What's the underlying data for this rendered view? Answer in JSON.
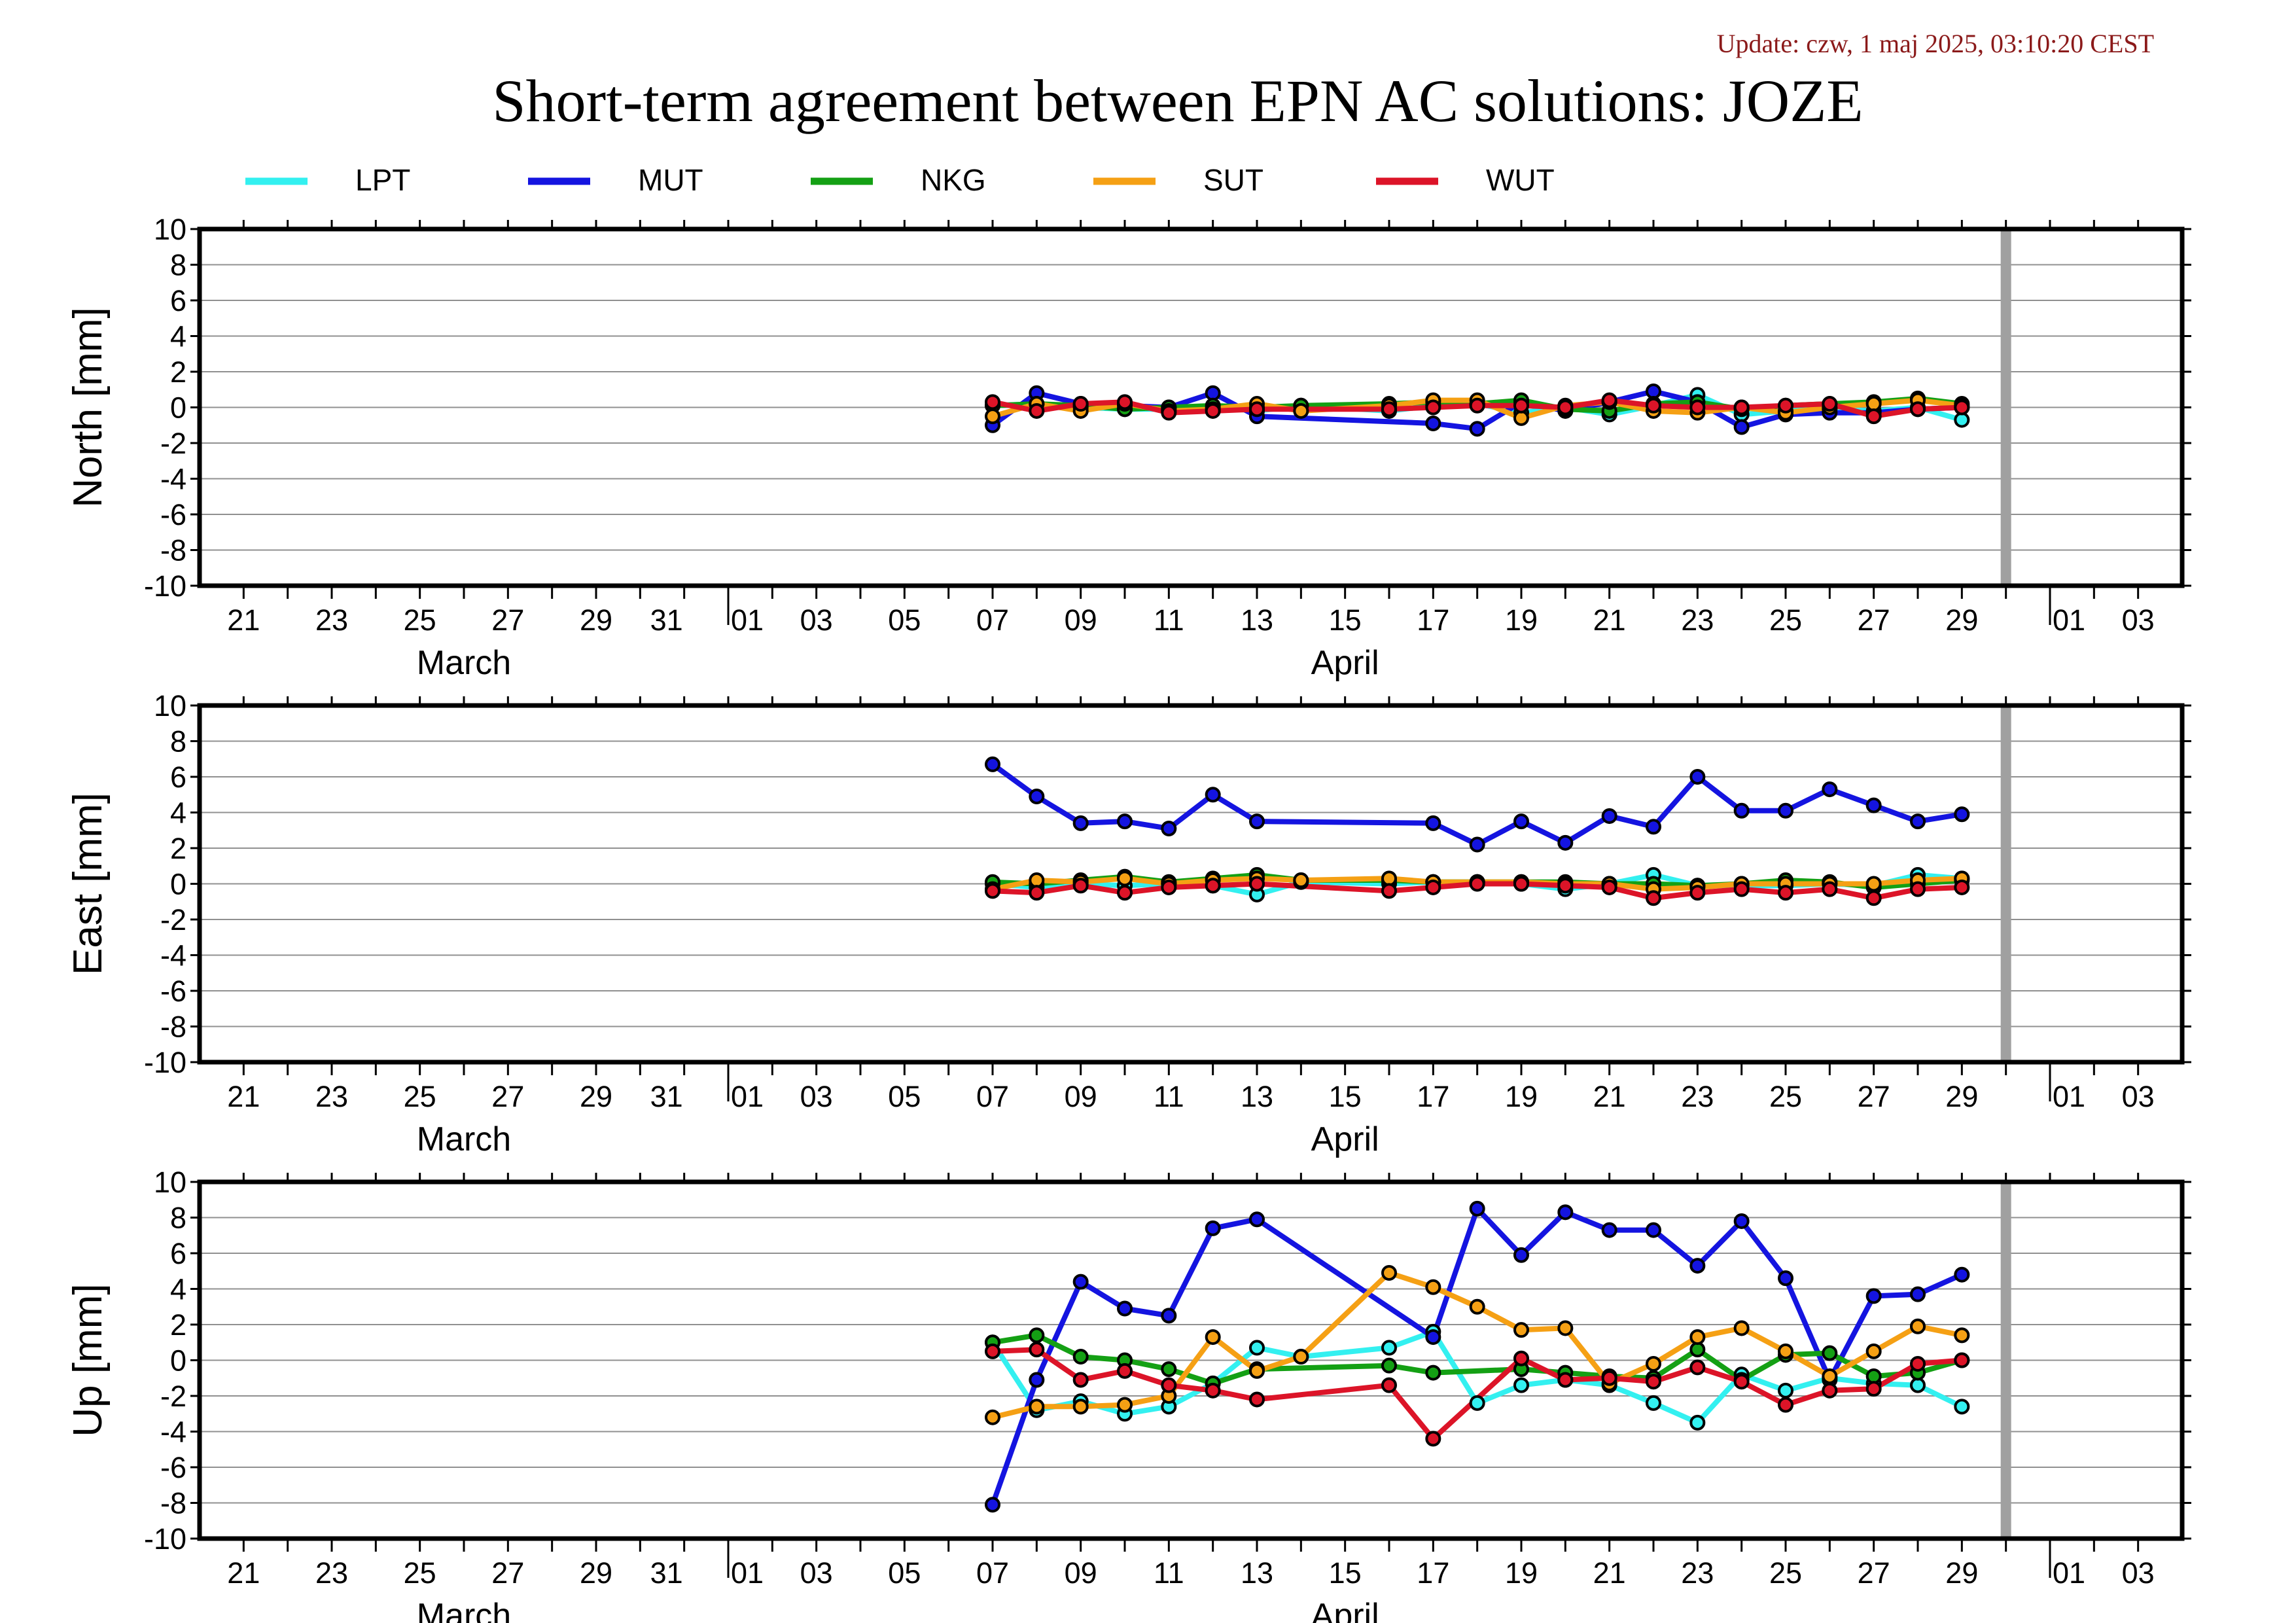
{
  "header": {
    "update": "Update: czw, 1 maj 2025, 03:10:20 CEST",
    "title": "Short-term agreement between EPN AC solutions: JOZE"
  },
  "legend": [
    {
      "name": "LPT",
      "color": "#33f0f0"
    },
    {
      "name": "MUT",
      "color": "#1414e0"
    },
    {
      "name": "NKG",
      "color": "#14a014"
    },
    {
      "name": "SUT",
      "color": "#f5a014"
    },
    {
      "name": "WUT",
      "color": "#dc1428"
    }
  ],
  "chart_data": [
    {
      "type": "line",
      "ylabel": "North [mm]",
      "ylim": [
        -10,
        10
      ],
      "yticks": [
        10,
        8,
        6,
        4,
        2,
        0,
        -2,
        -4,
        -6,
        -8,
        -10
      ],
      "xlim": [
        "2025-03-20",
        "2025-05-04"
      ],
      "xtick_labels": [
        "21",
        "23",
        "25",
        "27",
        "29",
        "31",
        "01",
        "03",
        "05",
        "07",
        "09",
        "11",
        "13",
        "15",
        "17",
        "19",
        "21",
        "23",
        "25",
        "27",
        "29",
        "01",
        "03"
      ],
      "month_labels": [
        "March",
        "April"
      ],
      "marker_line": "2025-04-30",
      "grid": true,
      "series": [
        {
          "name": "LPT",
          "x": [
            "2025-04-07",
            "2025-04-08",
            "2025-04-09",
            "2025-04-10",
            "2025-04-11",
            "2025-04-12",
            "2025-04-13",
            "2025-04-14",
            "2025-04-16",
            "2025-04-17",
            "2025-04-18",
            "2025-04-19",
            "2025-04-20",
            "2025-04-21",
            "2025-04-22",
            "2025-04-23",
            "2025-04-24",
            "2025-04-25",
            "2025-04-26",
            "2025-04-27",
            "2025-04-28",
            "2025-04-29"
          ],
          "values": [
            0.1,
            0.2,
            0.0,
            -0.1,
            -0.1,
            0.0,
            -0.2,
            0.1,
            -0.2,
            0.1,
            0.2,
            -0.3,
            0.0,
            -0.4,
            0.1,
            0.7,
            -0.4,
            -0.2,
            -0.1,
            -0.2,
            0.0,
            -0.7
          ]
        },
        {
          "name": "MUT",
          "x": [
            "2025-04-07",
            "2025-04-08",
            "2025-04-09",
            "2025-04-10",
            "2025-04-11",
            "2025-04-12",
            "2025-04-13",
            "2025-04-17",
            "2025-04-18",
            "2025-04-19",
            "2025-04-20",
            "2025-04-21",
            "2025-04-22",
            "2025-04-23",
            "2025-04-24",
            "2025-04-25",
            "2025-04-26",
            "2025-04-27",
            "2025-04-28",
            "2025-04-29"
          ],
          "values": [
            -1.0,
            0.8,
            0.2,
            0.1,
            0.0,
            0.8,
            -0.5,
            -0.9,
            -1.2,
            0.3,
            -0.2,
            0.3,
            0.9,
            0.3,
            -1.1,
            -0.4,
            -0.3,
            -0.3,
            -0.1,
            0.0
          ]
        },
        {
          "name": "NKG",
          "x": [
            "2025-04-07",
            "2025-04-08",
            "2025-04-09",
            "2025-04-10",
            "2025-04-11",
            "2025-04-12",
            "2025-04-13",
            "2025-04-14",
            "2025-04-16",
            "2025-04-17",
            "2025-04-18",
            "2025-04-19",
            "2025-04-20",
            "2025-04-21",
            "2025-04-22",
            "2025-04-23",
            "2025-04-24",
            "2025-04-25",
            "2025-04-26",
            "2025-04-27",
            "2025-04-28",
            "2025-04-29"
          ],
          "values": [
            0.1,
            0.2,
            0.1,
            -0.1,
            0.0,
            0.1,
            0.0,
            0.1,
            0.2,
            0.3,
            0.2,
            0.4,
            -0.1,
            -0.2,
            0.2,
            0.3,
            -0.1,
            0.1,
            0.2,
            0.3,
            0.5,
            0.2
          ]
        },
        {
          "name": "SUT",
          "x": [
            "2025-04-07",
            "2025-04-08",
            "2025-04-09",
            "2025-04-10",
            "2025-04-11",
            "2025-04-12",
            "2025-04-13",
            "2025-04-14",
            "2025-04-16",
            "2025-04-17",
            "2025-04-18",
            "2025-04-19",
            "2025-04-20",
            "2025-04-21",
            "2025-04-22",
            "2025-04-23",
            "2025-04-24",
            "2025-04-25",
            "2025-04-26",
            "2025-04-27",
            "2025-04-28",
            "2025-04-29"
          ],
          "values": [
            -0.5,
            0.2,
            -0.2,
            0.2,
            -0.2,
            -0.1,
            0.2,
            -0.2,
            0.1,
            0.4,
            0.4,
            -0.6,
            0.1,
            0.3,
            -0.2,
            -0.3,
            0.0,
            -0.3,
            0.0,
            0.2,
            0.4,
            0.1
          ]
        },
        {
          "name": "WUT",
          "x": [
            "2025-04-07",
            "2025-04-08",
            "2025-04-09",
            "2025-04-10",
            "2025-04-11",
            "2025-04-12",
            "2025-04-13",
            "2025-04-16",
            "2025-04-17",
            "2025-04-18",
            "2025-04-19",
            "2025-04-20",
            "2025-04-21",
            "2025-04-22",
            "2025-04-23",
            "2025-04-24",
            "2025-04-25",
            "2025-04-26",
            "2025-04-27",
            "2025-04-28",
            "2025-04-29"
          ],
          "values": [
            0.3,
            -0.2,
            0.2,
            0.3,
            -0.3,
            -0.2,
            -0.1,
            -0.1,
            0.0,
            0.1,
            0.1,
            0.0,
            0.4,
            0.1,
            0.0,
            0.0,
            0.1,
            0.2,
            -0.5,
            -0.1,
            0.0
          ]
        }
      ]
    },
    {
      "type": "line",
      "ylabel": "East [mm]",
      "ylim": [
        -10,
        10
      ],
      "yticks": [
        10,
        8,
        6,
        4,
        2,
        0,
        -2,
        -4,
        -6,
        -8,
        -10
      ],
      "xlim": [
        "2025-03-20",
        "2025-05-04"
      ],
      "xtick_labels": [
        "21",
        "23",
        "25",
        "27",
        "29",
        "31",
        "01",
        "03",
        "05",
        "07",
        "09",
        "11",
        "13",
        "15",
        "17",
        "19",
        "21",
        "23",
        "25",
        "27",
        "29",
        "01",
        "03"
      ],
      "month_labels": [
        "March",
        "April"
      ],
      "marker_line": "2025-04-30",
      "grid": true,
      "series": [
        {
          "name": "LPT",
          "x": [
            "2025-04-07",
            "2025-04-08",
            "2025-04-09",
            "2025-04-10",
            "2025-04-11",
            "2025-04-12",
            "2025-04-13",
            "2025-04-14",
            "2025-04-16",
            "2025-04-17",
            "2025-04-18",
            "2025-04-19",
            "2025-04-20",
            "2025-04-21",
            "2025-04-22",
            "2025-04-23",
            "2025-04-24",
            "2025-04-25",
            "2025-04-26",
            "2025-04-27",
            "2025-04-28",
            "2025-04-29"
          ],
          "values": [
            0.0,
            -0.2,
            0.0,
            -0.1,
            0.0,
            -0.1,
            -0.6,
            0.1,
            0.0,
            0.1,
            0.1,
            0.0,
            -0.3,
            0.0,
            0.5,
            -0.1,
            -0.1,
            -0.1,
            0.0,
            -0.1,
            0.5,
            0.3
          ]
        },
        {
          "name": "MUT",
          "x": [
            "2025-04-07",
            "2025-04-08",
            "2025-04-09",
            "2025-04-10",
            "2025-04-11",
            "2025-04-12",
            "2025-04-13",
            "2025-04-17",
            "2025-04-18",
            "2025-04-19",
            "2025-04-20",
            "2025-04-21",
            "2025-04-22",
            "2025-04-23",
            "2025-04-24",
            "2025-04-25",
            "2025-04-26",
            "2025-04-27",
            "2025-04-28",
            "2025-04-29"
          ],
          "values": [
            6.7,
            4.9,
            3.4,
            3.5,
            3.1,
            5.0,
            3.5,
            3.4,
            2.2,
            3.5,
            2.3,
            3.8,
            3.2,
            6.0,
            4.1,
            4.1,
            5.3,
            4.4,
            3.5,
            3.9
          ]
        },
        {
          "name": "NKG",
          "x": [
            "2025-04-07",
            "2025-04-08",
            "2025-04-09",
            "2025-04-10",
            "2025-04-11",
            "2025-04-12",
            "2025-04-13",
            "2025-04-14",
            "2025-04-16",
            "2025-04-17",
            "2025-04-18",
            "2025-04-19",
            "2025-04-20",
            "2025-04-21",
            "2025-04-22",
            "2025-04-23",
            "2025-04-24",
            "2025-04-25",
            "2025-04-26",
            "2025-04-27",
            "2025-04-28",
            "2025-04-29"
          ],
          "values": [
            0.1,
            0.0,
            0.2,
            0.4,
            0.1,
            0.3,
            0.5,
            0.2,
            0.2,
            0.1,
            0.1,
            0.1,
            0.1,
            0.0,
            0.0,
            -0.1,
            0.0,
            0.2,
            0.1,
            -0.2,
            0.0,
            0.2
          ]
        },
        {
          "name": "SUT",
          "x": [
            "2025-04-07",
            "2025-04-08",
            "2025-04-09",
            "2025-04-10",
            "2025-04-11",
            "2025-04-12",
            "2025-04-13",
            "2025-04-14",
            "2025-04-16",
            "2025-04-17",
            "2025-04-18",
            "2025-04-19",
            "2025-04-20",
            "2025-04-21",
            "2025-04-22",
            "2025-04-23",
            "2025-04-24",
            "2025-04-25",
            "2025-04-26",
            "2025-04-27",
            "2025-04-28",
            "2025-04-29"
          ],
          "values": [
            -0.3,
            0.2,
            0.1,
            0.3,
            0.0,
            0.2,
            0.3,
            0.2,
            0.3,
            0.1,
            0.1,
            0.1,
            0.0,
            0.0,
            -0.3,
            -0.2,
            0.0,
            0.0,
            0.0,
            0.0,
            0.2,
            0.3
          ]
        },
        {
          "name": "WUT",
          "x": [
            "2025-04-07",
            "2025-04-08",
            "2025-04-09",
            "2025-04-10",
            "2025-04-11",
            "2025-04-12",
            "2025-04-13",
            "2025-04-16",
            "2025-04-17",
            "2025-04-18",
            "2025-04-19",
            "2025-04-20",
            "2025-04-21",
            "2025-04-22",
            "2025-04-23",
            "2025-04-24",
            "2025-04-25",
            "2025-04-26",
            "2025-04-27",
            "2025-04-28",
            "2025-04-29"
          ],
          "values": [
            -0.4,
            -0.5,
            -0.1,
            -0.5,
            -0.2,
            -0.1,
            0.0,
            -0.4,
            -0.2,
            0.0,
            0.0,
            -0.1,
            -0.2,
            -0.8,
            -0.5,
            -0.3,
            -0.5,
            -0.3,
            -0.8,
            -0.3,
            -0.2
          ]
        }
      ]
    },
    {
      "type": "line",
      "ylabel": "Up [mm]",
      "ylim": [
        -10,
        10
      ],
      "yticks": [
        10,
        8,
        6,
        4,
        2,
        0,
        -2,
        -4,
        -6,
        -8,
        -10
      ],
      "xlim": [
        "2025-03-20",
        "2025-05-04"
      ],
      "xtick_labels": [
        "21",
        "23",
        "25",
        "27",
        "29",
        "31",
        "01",
        "03",
        "05",
        "07",
        "09",
        "11",
        "13",
        "15",
        "17",
        "19",
        "21",
        "23",
        "25",
        "27",
        "29",
        "01",
        "03"
      ],
      "month_labels": [
        "March",
        "April"
      ],
      "marker_line": "2025-04-30",
      "grid": true,
      "series": [
        {
          "name": "LPT",
          "x": [
            "2025-04-07",
            "2025-04-08",
            "2025-04-09",
            "2025-04-10",
            "2025-04-11",
            "2025-04-12",
            "2025-04-13",
            "2025-04-14",
            "2025-04-16",
            "2025-04-17",
            "2025-04-18",
            "2025-04-19",
            "2025-04-20",
            "2025-04-21",
            "2025-04-22",
            "2025-04-23",
            "2025-04-24",
            "2025-04-25",
            "2025-04-26",
            "2025-04-27",
            "2025-04-28",
            "2025-04-29"
          ],
          "values": [
            1.0,
            -2.8,
            -2.3,
            -3.0,
            -2.6,
            -1.3,
            0.7,
            0.2,
            0.7,
            1.6,
            -2.4,
            -1.4,
            -1.1,
            -1.4,
            -2.4,
            -3.5,
            -0.8,
            -1.7,
            -1.0,
            -1.3,
            -1.4,
            -2.6
          ]
        },
        {
          "name": "MUT",
          "x": [
            "2025-04-07",
            "2025-04-08",
            "2025-04-09",
            "2025-04-10",
            "2025-04-11",
            "2025-04-12",
            "2025-04-13",
            "2025-04-17",
            "2025-04-18",
            "2025-04-19",
            "2025-04-20",
            "2025-04-21",
            "2025-04-22",
            "2025-04-23",
            "2025-04-24",
            "2025-04-25",
            "2025-04-26",
            "2025-04-27",
            "2025-04-28",
            "2025-04-29"
          ],
          "values": [
            -8.1,
            -1.1,
            4.4,
            2.9,
            2.5,
            7.4,
            7.9,
            1.3,
            8.5,
            5.9,
            8.3,
            7.3,
            7.3,
            5.3,
            7.8,
            4.6,
            -1.1,
            3.6,
            3.7,
            4.8
          ]
        },
        {
          "name": "NKG",
          "x": [
            "2025-04-07",
            "2025-04-08",
            "2025-04-09",
            "2025-04-10",
            "2025-04-11",
            "2025-04-12",
            "2025-04-13",
            "2025-04-16",
            "2025-04-17",
            "2025-04-19",
            "2025-04-20",
            "2025-04-21",
            "2025-04-22",
            "2025-04-23",
            "2025-04-24",
            "2025-04-25",
            "2025-04-26",
            "2025-04-27",
            "2025-04-28",
            "2025-04-29"
          ],
          "values": [
            1.0,
            1.4,
            0.2,
            0.0,
            -0.5,
            -1.3,
            -0.5,
            -0.3,
            -0.7,
            -0.5,
            -0.7,
            -0.9,
            -1.0,
            0.6,
            -1.1,
            0.3,
            0.4,
            -0.9,
            -0.7,
            0.0
          ]
        },
        {
          "name": "SUT",
          "x": [
            "2025-04-07",
            "2025-04-08",
            "2025-04-09",
            "2025-04-10",
            "2025-04-11",
            "2025-04-12",
            "2025-04-13",
            "2025-04-14",
            "2025-04-16",
            "2025-04-17",
            "2025-04-18",
            "2025-04-19",
            "2025-04-20",
            "2025-04-21",
            "2025-04-22",
            "2025-04-23",
            "2025-04-24",
            "2025-04-25",
            "2025-04-26",
            "2025-04-27",
            "2025-04-28",
            "2025-04-29"
          ],
          "values": [
            -3.2,
            -2.6,
            -2.6,
            -2.5,
            -2.0,
            1.3,
            -0.6,
            0.2,
            4.9,
            4.1,
            3.0,
            1.7,
            1.8,
            -1.3,
            -0.2,
            1.3,
            1.8,
            0.5,
            -0.9,
            0.5,
            1.9,
            1.4
          ]
        },
        {
          "name": "WUT",
          "x": [
            "2025-04-07",
            "2025-04-08",
            "2025-04-09",
            "2025-04-10",
            "2025-04-11",
            "2025-04-12",
            "2025-04-13",
            "2025-04-16",
            "2025-04-17",
            "2025-04-19",
            "2025-04-20",
            "2025-04-21",
            "2025-04-22",
            "2025-04-23",
            "2025-04-24",
            "2025-04-25",
            "2025-04-26",
            "2025-04-27",
            "2025-04-28",
            "2025-04-29"
          ],
          "values": [
            0.5,
            0.6,
            -1.1,
            -0.6,
            -1.4,
            -1.7,
            -2.2,
            -1.4,
            -4.4,
            0.1,
            -1.1,
            -1.0,
            -1.2,
            -0.4,
            -1.2,
            -2.5,
            -1.7,
            -1.6,
            -0.2,
            0.0
          ]
        }
      ]
    }
  ]
}
